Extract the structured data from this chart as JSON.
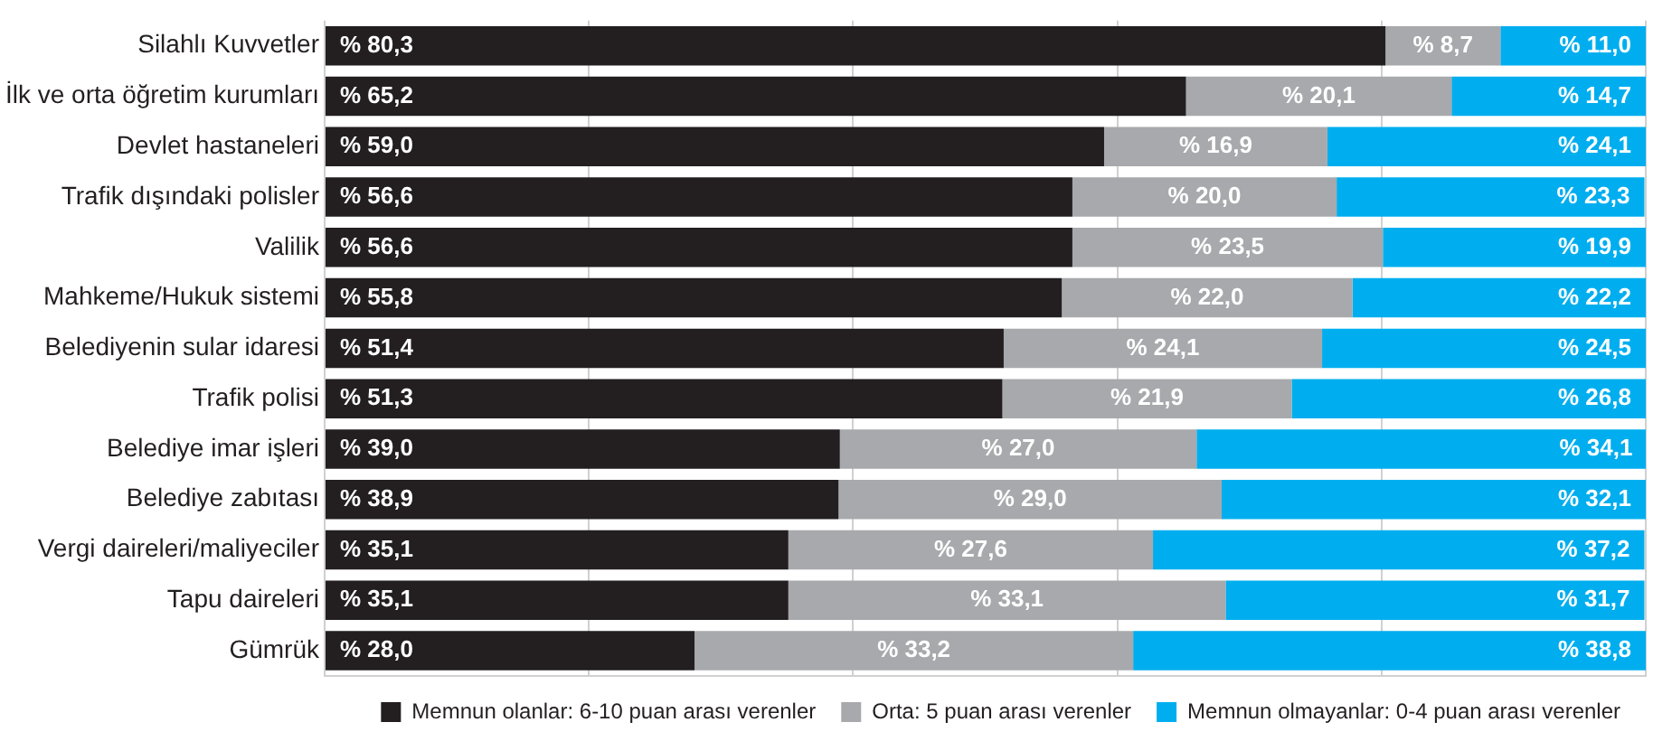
{
  "chart_data": {
    "type": "bar",
    "orientation": "horizontal",
    "stacked": true,
    "categories": [
      "Silahlı Kuvvetler",
      "İlk ve orta öğretim kurumları",
      "Devlet hastaneleri",
      "Trafik dışındaki polisler",
      "Valilik",
      "Mahkeme/Hukuk sistemi",
      "Belediyenin sular idaresi",
      "Trafik polisi",
      "Belediye imar işleri",
      "Belediye zabıtası",
      "Vergi daireleri/maliyeciler",
      "Tapu daireleri",
      "Gümrük"
    ],
    "series": [
      {
        "name": "Memnun olanlar: 6-10 puan arası verenler",
        "color": "#231f20",
        "values": [
          80.3,
          65.2,
          59.0,
          56.6,
          56.6,
          55.8,
          51.4,
          51.3,
          39.0,
          38.9,
          35.1,
          35.1,
          28.0
        ],
        "value_labels": [
          "% 80,3",
          "% 65,2",
          "% 59,0",
          "% 56,6",
          "% 56,6",
          "% 55,8",
          "% 51,4",
          "% 51,3",
          "% 39,0",
          "% 38,9",
          "% 35,1",
          "% 35,1",
          "% 28,0"
        ]
      },
      {
        "name": "Orta: 5 puan arası verenler",
        "color": "#a7a9ac",
        "values": [
          8.7,
          20.1,
          16.9,
          20.0,
          23.5,
          22.0,
          24.1,
          21.9,
          27.0,
          29.0,
          27.6,
          33.1,
          33.2
        ],
        "value_labels": [
          "% 8,7",
          "% 20,1",
          "% 16,9",
          "% 20,0",
          "% 23,5",
          "% 22,0",
          "% 24,1",
          "% 21,9",
          "% 27,0",
          "% 29,0",
          "% 27,6",
          "% 33,1",
          "% 33,2"
        ]
      },
      {
        "name": "Memnun olmayanlar: 0-4 puan arası verenler",
        "color": "#00aeef",
        "values": [
          11.0,
          14.7,
          24.1,
          23.3,
          19.9,
          22.2,
          24.5,
          26.8,
          34.1,
          32.1,
          37.2,
          31.7,
          38.8
        ],
        "value_labels": [
          "% 11,0",
          "% 14,7",
          "% 24,1",
          "% 23,3",
          "% 19,9",
          "% 22,2",
          "% 24,5",
          "% 26,8",
          "% 34,1",
          "% 32,1",
          "% 37,2",
          "% 31,7",
          "% 38,8"
        ]
      }
    ],
    "xlim": [
      0,
      100
    ],
    "xticks": [
      {
        "value": 0,
        "label": null
      },
      {
        "value": 20,
        "label": null
      },
      {
        "value": 40,
        "label": null
      },
      {
        "value": 60,
        "label": null
      },
      {
        "value": 80,
        "label": null
      },
      {
        "value": 100,
        "label": null
      }
    ],
    "tick_labels": "y",
    "grid": "x",
    "legend": "bottom right"
  }
}
